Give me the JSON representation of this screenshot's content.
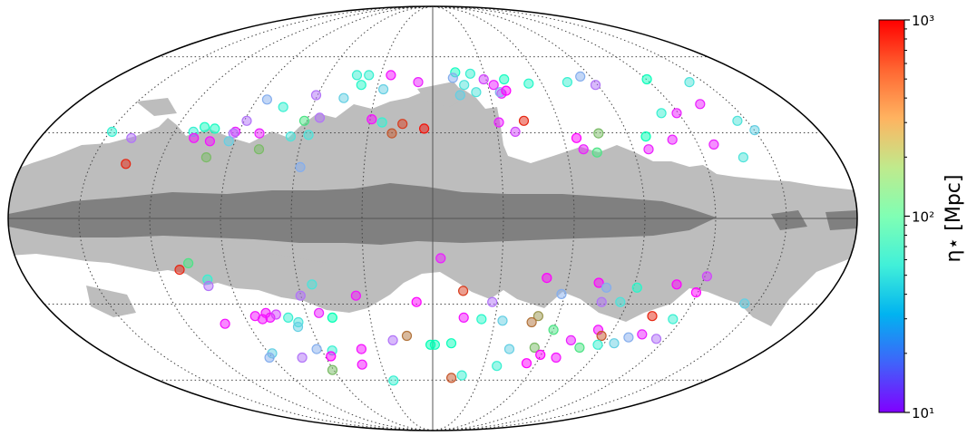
{
  "chart_data": {
    "type": "scatter",
    "projection": "mollweide",
    "title": "",
    "xlabel": "",
    "ylabel": "",
    "grid": true,
    "colorbar": {
      "label": "η⋆ [Mpc]",
      "scale": "log",
      "range": [
        10,
        1000
      ],
      "ticks": [
        {
          "value": 10,
          "label": "10¹"
        },
        {
          "value": 100,
          "label": "10²"
        },
        {
          "value": 1000,
          "label": "10³"
        }
      ],
      "colormap": "rainbow"
    },
    "masks": {
      "light_region_color": "#bdbdbd",
      "dark_region_color": "#808080"
    },
    "points": [
      {
        "x": 0.23,
        "y": 0.93,
        "v": 80
      },
      {
        "x": 0.2,
        "y": 0.89,
        "v": 30
      },
      {
        "x": 0.5,
        "y": 0.88,
        "v": 15
      },
      {
        "x": 0.38,
        "y": 0.92,
        "v": 60
      },
      {
        "x": 0.7,
        "y": 0.88,
        "v": 80
      },
      {
        "x": 0.3,
        "y": 0.84,
        "v": 50
      },
      {
        "x": 0.58,
        "y": 0.84,
        "v": 12
      },
      {
        "x": 0.4,
        "y": 0.79,
        "v": 50
      },
      {
        "x": 0.25,
        "y": 0.77,
        "v": 40
      },
      {
        "x": 0.63,
        "y": 0.78,
        "v": 12
      },
      {
        "x": 0.62,
        "y": 0.79,
        "v": 30
      },
      {
        "x": 0.68,
        "y": 0.8,
        "v": 10
      },
      {
        "x": 0.92,
        "y": 0.85,
        "v": 70
      },
      {
        "x": 1.3,
        "y": 0.86,
        "v": 60
      },
      {
        "x": 1.47,
        "y": 0.9,
        "v": 30
      },
      {
        "x": 2.1,
        "y": 0.88,
        "v": 90
      },
      {
        "x": 1.55,
        "y": 0.84,
        "v": 20
      },
      {
        "x": 2.48,
        "y": 0.86,
        "v": 50
      },
      {
        "x": 2.35,
        "y": 0.71,
        "v": 12
      },
      {
        "x": -0.42,
        "y": 0.91,
        "v": 11
      },
      {
        "x": -0.64,
        "y": 0.91,
        "v": 60
      },
      {
        "x": -0.76,
        "y": 0.91,
        "v": 60
      },
      {
        "x": -0.14,
        "y": 0.86,
        "v": 12
      },
      {
        "x": -0.46,
        "y": 0.81,
        "v": 40
      },
      {
        "x": -0.68,
        "y": 0.84,
        "v": 70
      },
      {
        "x": -0.8,
        "y": 0.75,
        "v": 40
      },
      {
        "x": -1.06,
        "y": 0.77,
        "v": 20
      },
      {
        "x": -1.48,
        "y": 0.74,
        "v": 30
      },
      {
        "x": -1.3,
        "y": 0.69,
        "v": 60
      },
      {
        "x": -1.07,
        "y": 0.6,
        "v": 200
      },
      {
        "x": -0.95,
        "y": 0.62,
        "v": 20
      },
      {
        "x": 2.08,
        "y": 0.65,
        "v": 12
      },
      {
        "x": -1.55,
        "y": 0.6,
        "v": 20
      },
      {
        "x": -0.51,
        "y": 0.61,
        "v": 11
      },
      {
        "x": -0.42,
        "y": 0.59,
        "v": 60
      },
      {
        "x": -0.25,
        "y": 0.58,
        "v": 700
      },
      {
        "x": -0.07,
        "y": 0.55,
        "v": 900
      },
      {
        "x": -0.33,
        "y": 0.52,
        "v": 600
      },
      {
        "x": 0.76,
        "y": 0.6,
        "v": 800
      },
      {
        "x": 0.55,
        "y": 0.59,
        "v": 12
      },
      {
        "x": 1.95,
        "y": 0.65,
        "v": 60
      },
      {
        "x": 2.54,
        "y": 0.6,
        "v": 50
      },
      {
        "x": 1.34,
        "y": 0.52,
        "v": 300
      },
      {
        "x": 1.15,
        "y": 0.49,
        "v": 10
      },
      {
        "x": 1.71,
        "y": 0.5,
        "v": 100
      },
      {
        "x": 1.91,
        "y": 0.48,
        "v": 12
      },
      {
        "x": 2.62,
        "y": 0.54,
        "v": 40
      },
      {
        "x": -2.6,
        "y": 0.53,
        "v": 60
      },
      {
        "x": -2.41,
        "y": 0.49,
        "v": 20
      },
      {
        "x": -1.94,
        "y": 0.53,
        "v": 60
      },
      {
        "x": -1.87,
        "y": 0.56,
        "v": 80
      },
      {
        "x": -1.78,
        "y": 0.55,
        "v": 80
      },
      {
        "x": -1.6,
        "y": 0.53,
        "v": 12
      },
      {
        "x": -1.61,
        "y": 0.52,
        "v": 20
      },
      {
        "x": -1.4,
        "y": 0.52,
        "v": 12
      },
      {
        "x": -1.14,
        "y": 0.5,
        "v": 50
      },
      {
        "x": -1.0,
        "y": 0.51,
        "v": 50
      },
      {
        "x": -1.91,
        "y": 0.49,
        "v": 11
      },
      {
        "x": -1.77,
        "y": 0.47,
        "v": 11
      },
      {
        "x": -1.62,
        "y": 0.47,
        "v": 40
      },
      {
        "x": -1.36,
        "y": 0.42,
        "v": 300
      },
      {
        "x": 1.18,
        "y": 0.42,
        "v": 12
      },
      {
        "x": 1.69,
        "y": 0.42,
        "v": 12
      },
      {
        "x": 2.22,
        "y": 0.45,
        "v": 12
      },
      {
        "x": 2.4,
        "y": 0.37,
        "v": 50
      },
      {
        "x": 1.28,
        "y": 0.4,
        "v": 200
      },
      {
        "x": 0.67,
        "y": 0.53,
        "v": 15
      },
      {
        "x": -2.35,
        "y": 0.33,
        "v": 800
      },
      {
        "x": -1.01,
        "y": 0.31,
        "v": 30
      },
      {
        "x": -1.75,
        "y": 0.37,
        "v": 300
      },
      {
        "x": 0.06,
        "y": -0.24,
        "v": 12
      },
      {
        "x": -1.85,
        "y": -0.27,
        "v": 200
      },
      {
        "x": -1.93,
        "y": -0.31,
        "v": 800
      },
      {
        "x": -1.74,
        "y": -0.37,
        "v": 60
      },
      {
        "x": -1.75,
        "y": -0.41,
        "v": 20
      },
      {
        "x": -0.94,
        "y": -0.4,
        "v": 50
      },
      {
        "x": -1.05,
        "y": -0.47,
        "v": 20
      },
      {
        "x": -0.61,
        "y": -0.47,
        "v": 11
      },
      {
        "x": 0.24,
        "y": -0.44,
        "v": 700
      },
      {
        "x": -0.13,
        "y": -0.51,
        "v": 10
      },
      {
        "x": 0.48,
        "y": -0.51,
        "v": 20
      },
      {
        "x": 0.88,
        "y": -0.36,
        "v": 10
      },
      {
        "x": 1.29,
        "y": -0.39,
        "v": 10
      },
      {
        "x": 1.36,
        "y": -0.42,
        "v": 30
      },
      {
        "x": 1.6,
        "y": -0.42,
        "v": 70
      },
      {
        "x": 1.9,
        "y": -0.4,
        "v": 10
      },
      {
        "x": 2.11,
        "y": -0.35,
        "v": 15
      },
      {
        "x": 2.08,
        "y": -0.45,
        "v": 10
      },
      {
        "x": 1.02,
        "y": -0.46,
        "v": 30
      },
      {
        "x": 1.36,
        "y": -0.51,
        "v": 20
      },
      {
        "x": 1.51,
        "y": -0.51,
        "v": 50
      },
      {
        "x": 2.52,
        "y": -0.52,
        "v": 40
      },
      {
        "x": 1.83,
        "y": -0.6,
        "v": 800
      },
      {
        "x": 2.02,
        "y": -0.62,
        "v": 60
      },
      {
        "x": 0.26,
        "y": -0.61,
        "v": 11
      },
      {
        "x": 0.41,
        "y": -0.62,
        "v": 70
      },
      {
        "x": 0.59,
        "y": -0.63,
        "v": 40
      },
      {
        "x": 0.88,
        "y": -0.6,
        "v": 400
      },
      {
        "x": 0.84,
        "y": -0.64,
        "v": 500
      },
      {
        "x": -0.94,
        "y": -0.58,
        "v": 12
      },
      {
        "x": -1.48,
        "y": -0.6,
        "v": 11
      },
      {
        "x": -1.43,
        "y": -0.62,
        "v": 11
      },
      {
        "x": -1.38,
        "y": -0.58,
        "v": 11
      },
      {
        "x": -1.36,
        "y": -0.61,
        "v": 11
      },
      {
        "x": -1.3,
        "y": -0.59,
        "v": 15
      },
      {
        "x": -1.21,
        "y": -0.61,
        "v": 60
      },
      {
        "x": -1.14,
        "y": -0.64,
        "v": 50
      },
      {
        "x": -1.16,
        "y": -0.67,
        "v": 40
      },
      {
        "x": -0.84,
        "y": -0.61,
        "v": 100
      },
      {
        "x": -1.77,
        "y": -0.65,
        "v": 11
      },
      {
        "x": -0.36,
        "y": -0.76,
        "v": 20
      },
      {
        "x": -0.23,
        "y": -0.73,
        "v": 500
      },
      {
        "x": 0.02,
        "y": -0.79,
        "v": 90
      },
      {
        "x": -0.02,
        "y": -0.79,
        "v": 100
      },
      {
        "x": 0.17,
        "y": -0.78,
        "v": 90
      },
      {
        "x": 1.05,
        "y": -0.69,
        "v": 200
      },
      {
        "x": 1.44,
        "y": -0.69,
        "v": 11
      },
      {
        "x": 1.5,
        "y": -0.73,
        "v": 600
      },
      {
        "x": 1.75,
        "y": -0.74,
        "v": 30
      },
      {
        "x": 2.01,
        "y": -0.75,
        "v": 20
      },
      {
        "x": 1.25,
        "y": -0.76,
        "v": 12
      },
      {
        "x": 1.37,
        "y": -0.81,
        "v": 200
      },
      {
        "x": 1.52,
        "y": -0.79,
        "v": 60
      },
      {
        "x": 1.66,
        "y": -0.78,
        "v": 40
      },
      {
        "x": 1.85,
        "y": -0.72,
        "v": 12
      },
      {
        "x": 0.95,
        "y": -0.81,
        "v": 300
      },
      {
        "x": 1.04,
        "y": -0.86,
        "v": 10
      },
      {
        "x": 1.21,
        "y": -0.88,
        "v": 11
      },
      {
        "x": 0.72,
        "y": -0.82,
        "v": 40
      },
      {
        "x": 0.95,
        "y": -0.92,
        "v": 10
      },
      {
        "x": 0.66,
        "y": -0.94,
        "v": 60
      },
      {
        "x": -0.67,
        "y": -0.82,
        "v": 11
      },
      {
        "x": -0.95,
        "y": -0.83,
        "v": 60
      },
      {
        "x": -1.09,
        "y": -0.82,
        "v": 30
      },
      {
        "x": -1.28,
        "y": -0.88,
        "v": 20
      },
      {
        "x": -1.54,
        "y": -0.85,
        "v": 40
      },
      {
        "x": -1.6,
        "y": -0.88,
        "v": 30
      },
      {
        "x": -0.99,
        "y": -0.87,
        "v": 10
      },
      {
        "x": -1.06,
        "y": -0.97,
        "v": 300
      },
      {
        "x": -0.72,
        "y": -0.93,
        "v": 11
      },
      {
        "x": 0.21,
        "y": -1.03,
        "v": 600
      },
      {
        "x": 0.32,
        "y": -1.01,
        "v": 60
      },
      {
        "x": -0.45,
        "y": -1.05,
        "v": 60
      }
    ]
  }
}
